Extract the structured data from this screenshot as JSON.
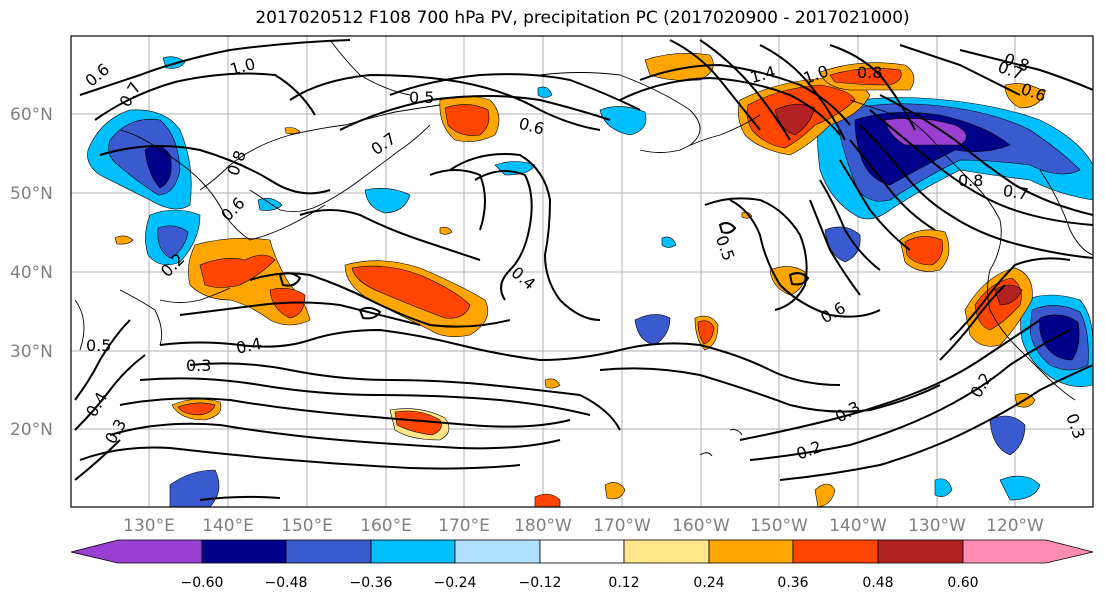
{
  "title": "2017020512 F108 700 hPa PV, precipitation PC (2017020900 - 2017021000)",
  "axes": {
    "x_ticks": [
      "130°E",
      "140°E",
      "150°E",
      "160°E",
      "170°E",
      "180°W",
      "170°W",
      "160°W",
      "150°W",
      "140°W",
      "130°W",
      "120°W"
    ],
    "y_ticks": [
      "60°N",
      "50°N",
      "40°N",
      "30°N",
      "20°N"
    ]
  },
  "colorbar": {
    "ticks": [
      "−0.60",
      "−0.48",
      "−0.36",
      "−0.24",
      "−0.12",
      "0.12",
      "0.24",
      "0.36",
      "0.48",
      "0.60"
    ],
    "colors": [
      "#9a3fd1",
      "#00008b",
      "#3a5bcf",
      "#00bfff",
      "#b0e2ff",
      "#ffffff",
      "#ffe68a",
      "#ffa500",
      "#ff4500",
      "#b22222",
      "#ff8cb4"
    ]
  },
  "contour_labels": [
    "0.6",
    "1.0",
    "0.7",
    "0.5",
    "0.7",
    "0.6",
    "1.4",
    "1.0",
    "0.8",
    "0.8",
    "0.7",
    "0.6",
    "0.8",
    "0.8",
    "0.7",
    "0.5",
    "0.4",
    "0.6",
    "0.4",
    "0.5",
    "0.3",
    "0.4",
    "0.3",
    "0.2",
    "0.3",
    "0.2",
    "0.3",
    "0.2",
    "0.6"
  ]
}
